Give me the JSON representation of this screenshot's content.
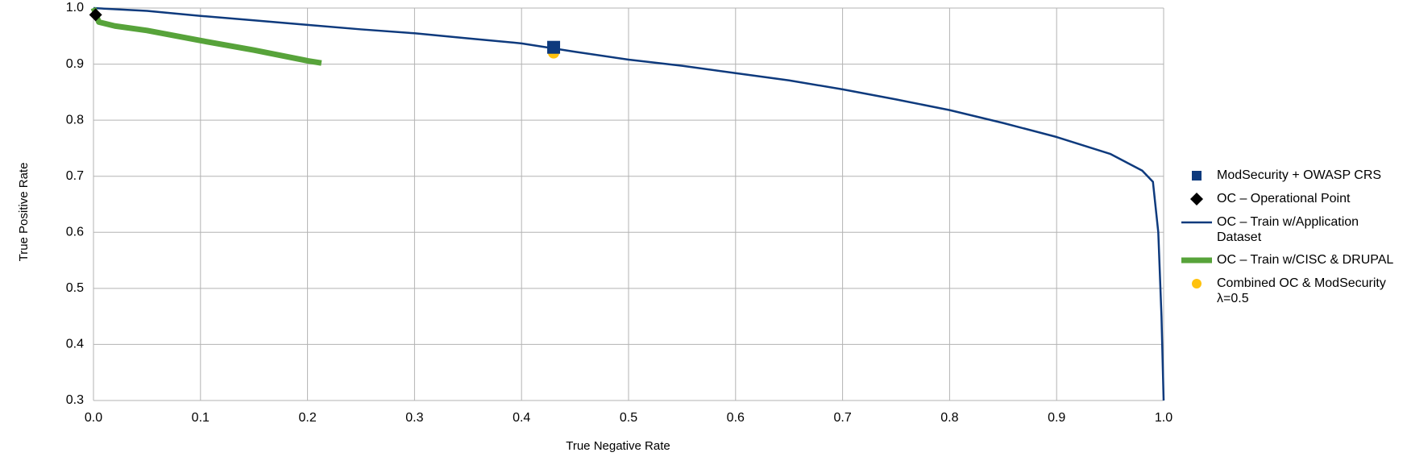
{
  "chart_data": {
    "type": "line",
    "x_label": "True Negative Rate",
    "y_label": "True Positive Rate",
    "xlim": [
      0,
      1
    ],
    "ylim": [
      0.3,
      1
    ],
    "xticks": [
      {
        "value": 0,
        "label": "0.0"
      },
      0.1,
      0.2,
      0.3,
      0.4,
      0.5,
      0.6,
      0.7,
      0.8,
      0.9,
      {
        "value": 1,
        "label": "1.0"
      }
    ],
    "yticks": [
      0.3,
      0.4,
      0.5,
      0.6,
      0.7,
      0.8,
      0.9,
      {
        "value": 1,
        "label": "1.0"
      }
    ],
    "grid": true,
    "legend": "right",
    "series": [
      {
        "name": "OC – Train w/Application Dataset",
        "color": "#0e3a7d",
        "marker": "line",
        "line_width": 2.5,
        "x": [
          0,
          0.05,
          0.1,
          0.15,
          0.2,
          0.25,
          0.3,
          0.35,
          0.4,
          0.45,
          0.5,
          0.55,
          0.6,
          0.65,
          0.7,
          0.75,
          0.8,
          0.85,
          0.9,
          0.95,
          0.98,
          0.99,
          0.995,
          0.998,
          1.0
        ],
        "values": [
          1.0,
          0.995,
          0.986,
          0.978,
          0.97,
          0.962,
          0.955,
          0.946,
          0.937,
          0.922,
          0.908,
          0.897,
          0.884,
          0.871,
          0.855,
          0.837,
          0.818,
          0.795,
          0.77,
          0.74,
          0.71,
          0.69,
          0.6,
          0.45,
          0.3
        ]
      },
      {
        "name": "OC – Train w/CISC & DRUPAL",
        "color": "#57a33a",
        "marker": "line",
        "line_width": 7,
        "x": [
          0,
          0.005,
          0.02,
          0.05,
          0.1,
          0.15,
          0.2,
          0.213
        ],
        "values": [
          1.0,
          0.975,
          0.968,
          0.96,
          0.942,
          0.925,
          0.906,
          0.902
        ]
      },
      {
        "name": "Combined OC & ModSecurity λ=0.5",
        "color": "#ffc20e",
        "marker": "circle",
        "x": [
          0.43
        ],
        "values": [
          0.92
        ]
      },
      {
        "name": "ModSecurity + OWASP CRS",
        "color": "#0e3a7d",
        "marker": "square",
        "x": [
          0.43
        ],
        "values": [
          0.93
        ]
      },
      {
        "name": "OC – Operational Point",
        "color": "#000000",
        "marker": "diamond",
        "x": [
          0.002
        ],
        "values": [
          0.988
        ]
      }
    ],
    "legend_order": [
      3,
      4,
      0,
      1,
      2
    ]
  }
}
